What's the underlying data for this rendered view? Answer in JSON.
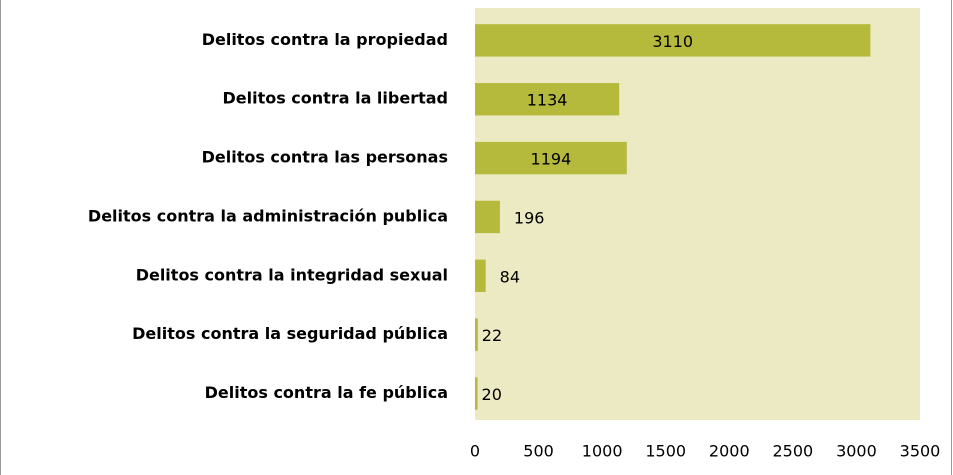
{
  "chart_data": {
    "type": "bar",
    "orientation": "horizontal",
    "categories": [
      "Delitos contra la propiedad",
      "Delitos contra la libertad",
      "Delitos contra las personas",
      "Delitos contra la administración publica",
      "Delitos contra la integridad sexual",
      "Delitos contra la seguridad pública",
      "Delitos contra la fe pública"
    ],
    "values": [
      3110,
      1134,
      1194,
      196,
      84,
      22,
      20
    ],
    "color": "#b5b93c",
    "plot_background": "#ebeac2",
    "xlim": [
      0,
      3500
    ],
    "xticks": [
      0,
      500,
      1000,
      1500,
      2000,
      2500,
      3000,
      3500
    ],
    "grid": false
  }
}
